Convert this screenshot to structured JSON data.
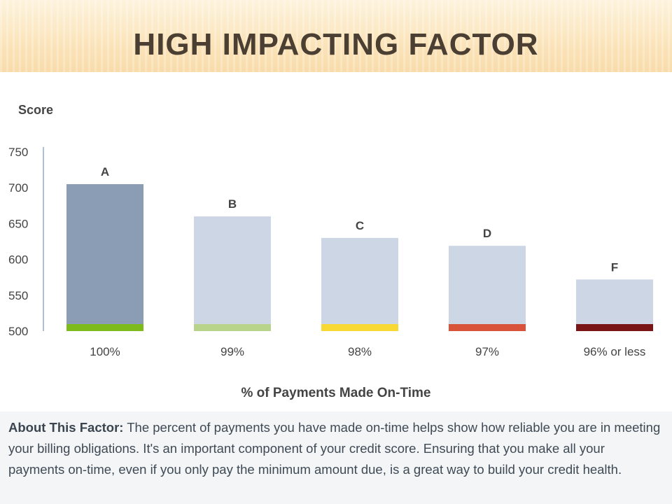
{
  "slide": {
    "title": "HIGH IMPACTING FACTOR"
  },
  "colors": {
    "highlight_bar": "#8a9db5",
    "bar": "#cdd6e5",
    "axis": "#aebfd6",
    "text": "#444444"
  },
  "chart_data": {
    "type": "bar",
    "ylabel": "Score",
    "xlabel": "% of Payments Made On-Time",
    "ylim": [
      500,
      750
    ],
    "yticks": [
      "750",
      "700",
      "650",
      "600",
      "550",
      "500"
    ],
    "categories": [
      "100%",
      "99%",
      "98%",
      "97%",
      "96% or less"
    ],
    "grades": [
      "A",
      "B",
      "C",
      "D",
      "F"
    ],
    "values": [
      705,
      660,
      630,
      619,
      572
    ],
    "highlight_index": 0,
    "band_colors": [
      "#7dbb1c",
      "#b8d38a",
      "#f8d934",
      "#d9533a",
      "#7a1515"
    ],
    "grid": false,
    "legend": "none"
  },
  "about": {
    "label": "About This Factor:",
    "text": " The percent of payments you have made on-time helps show how reliable you are in meeting your billing obligations. It's an important component of your credit score. Ensuring that you make all your payments on-time, even if you only pay the minimum amount due, is a great way to build your credit health."
  }
}
